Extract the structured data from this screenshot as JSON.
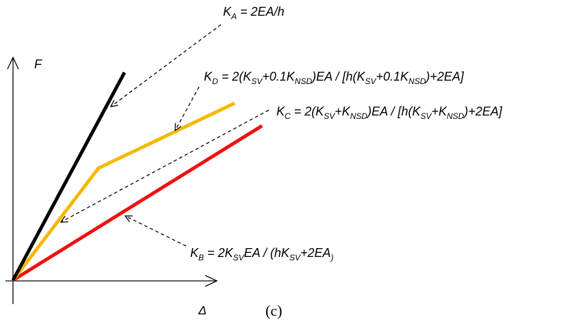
{
  "axes": {
    "y_label": "F",
    "x_label": "Δ"
  },
  "caption": "(c)",
  "colors": {
    "line_a": "#000000",
    "line_b": "#ee1111",
    "line_d": "#f5b800",
    "arrow": "#000000"
  },
  "equations": {
    "ka": {
      "k": "K",
      "sub": "A",
      "rest": " = 2EA/h"
    },
    "kd": {
      "k": "K",
      "sub": "D",
      "p1": " = 2(K",
      "s1": "SV",
      "p2": "+0.1K",
      "s2": "NSD",
      "p3": ")EA / [h(K",
      "s3": "SV",
      "p4": "+0.1K",
      "s4": "NSD",
      "p5": ")+2EA]"
    },
    "kc": {
      "k": "K",
      "sub": "C",
      "p1": " = 2(K",
      "s1": "SV",
      "p2": "+K",
      "s2": "NSD",
      "p3": ")EA / [h(K",
      "s3": "SV",
      "p4": "+K",
      "s4": "NSD",
      "p5": ")+2EA]"
    },
    "kb": {
      "k": "K",
      "sub": "B",
      "p1": " = 2K",
      "s1": "SV",
      "p2": "EA / (hK",
      "s2": "SV",
      "p3": "+2EA",
      "s3": ")"
    }
  }
}
